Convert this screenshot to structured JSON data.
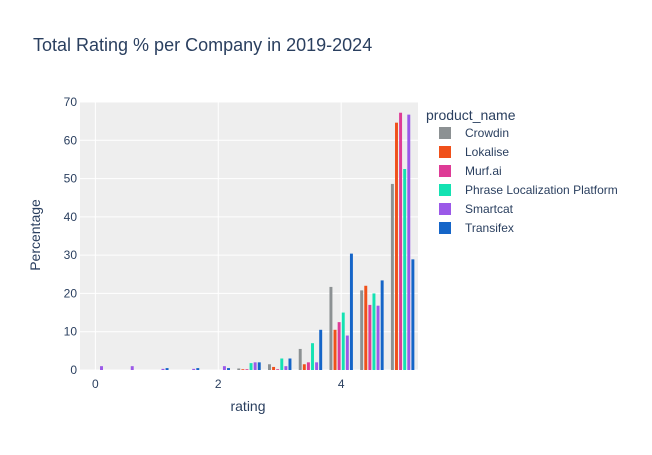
{
  "chart_data": {
    "type": "bar",
    "title": "Total Rating % per Company in 2019-2024",
    "xlabel": "rating",
    "ylabel": "Percentage",
    "xlim": [
      -0.25,
      5.25
    ],
    "ylim": [
      0,
      70
    ],
    "xticks": [
      0,
      2,
      4
    ],
    "yticks": [
      0,
      10,
      20,
      30,
      40,
      50,
      60,
      70
    ],
    "grid": true,
    "legend": {
      "title": "product_name",
      "placement": "right"
    },
    "x": [
      0,
      0.5,
      1,
      1.5,
      2,
      2.5,
      3,
      3.5,
      4,
      4.5,
      5
    ],
    "series": [
      {
        "name": "Crowdin",
        "color": "#8C9193",
        "values": [
          0,
          0,
          0,
          0,
          0,
          0.4,
          1.5,
          5.5,
          21.7,
          20.8,
          48.6
        ]
      },
      {
        "name": "Lokalise",
        "color": "#F0501A",
        "values": [
          0,
          0,
          0,
          0,
          0,
          0.2,
          0.8,
          1.5,
          10.5,
          22,
          64.6
        ]
      },
      {
        "name": "Murf.ai",
        "color": "#DE3B96",
        "values": [
          0,
          0,
          0,
          0,
          0,
          0.2,
          0.2,
          2,
          12.5,
          17,
          67.2
        ]
      },
      {
        "name": "Phrase Localization Platform",
        "color": "#14E2B2",
        "values": [
          0,
          0,
          0,
          0,
          0,
          1.8,
          3,
          7,
          15,
          20,
          52.5
        ]
      },
      {
        "name": "Smartcat",
        "color": "#9B59E8",
        "values": [
          1,
          1,
          0.3,
          0.3,
          1,
          2,
          1,
          2,
          9,
          16.8,
          66.7
        ]
      },
      {
        "name": "Transifex",
        "color": "#1565C8",
        "values": [
          0,
          0,
          0.5,
          0.5,
          0.5,
          2,
          3,
          10.5,
          30.4,
          23.4,
          28.9
        ]
      }
    ]
  }
}
